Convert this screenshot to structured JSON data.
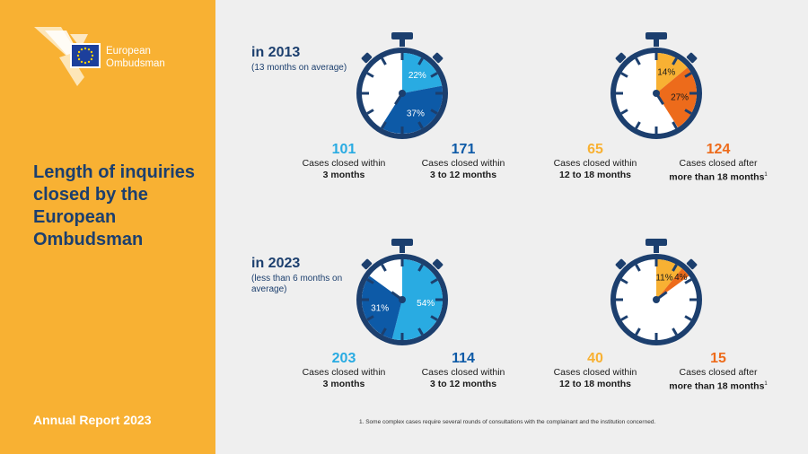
{
  "brand": {
    "name_line1": "European",
    "name_line2": "Ombudsman"
  },
  "sidebar": {
    "title": "Length of inquiries closed by the European Ombudsman",
    "footer": "Annual Report 2023"
  },
  "colors": {
    "dark_navy": "#1c3f6e",
    "light_blue": "#29abe2",
    "mid_blue": "#0d5aa7",
    "orange_light": "#f8b133",
    "orange_dark": "#ed6b1b",
    "sidebar": "#f8b133"
  },
  "periods": [
    {
      "title": "in 2013",
      "subtitle": "(13 months on average)"
    },
    {
      "title": "in 2023",
      "subtitle": "(less than 6 months on average)"
    }
  ],
  "stats_2013": [
    {
      "value": "101",
      "line1": "Cases closed within",
      "line2": "3 months"
    },
    {
      "value": "171",
      "line1": "Cases closed within",
      "line2": "3 to 12 months"
    },
    {
      "value": "65",
      "line1": "Cases closed within",
      "line2": "12 to 18 months"
    },
    {
      "value": "124",
      "line1": "Cases closed after",
      "line2": "more than 18 months",
      "sup": "1"
    }
  ],
  "stats_2023": [
    {
      "value": "203",
      "line1": "Cases closed within",
      "line2": "3 months"
    },
    {
      "value": "114",
      "line1": "Cases closed within",
      "line2": "3 to 12 months"
    },
    {
      "value": "40",
      "line1": "Cases closed within",
      "line2": "12 to 18 months"
    },
    {
      "value": "15",
      "line1": "Cases closed after",
      "line2": "more than 18 months",
      "sup": "1"
    }
  ],
  "footnote": "1. Some complex cases require several rounds of consultations with the complainant and the institution concerned.",
  "chart_data": [
    {
      "type": "pie",
      "year": "2013",
      "slices": [
        {
          "label": "22%",
          "value": 22,
          "color": "#29abe2"
        },
        {
          "label": "37%",
          "value": 37,
          "color": "#0d5aa7"
        }
      ]
    },
    {
      "type": "pie",
      "year": "2013",
      "slices": [
        {
          "label": "14%",
          "value": 14,
          "color": "#f8b133"
        },
        {
          "label": "27%",
          "value": 27,
          "color": "#ed6b1b"
        }
      ]
    },
    {
      "type": "pie",
      "year": "2023",
      "slices": [
        {
          "label": "54%",
          "value": 54,
          "color": "#29abe2"
        },
        {
          "label": "31%",
          "value": 31,
          "color": "#0d5aa7"
        }
      ]
    },
    {
      "type": "pie",
      "year": "2023",
      "slices": [
        {
          "label": "11%",
          "value": 11,
          "color": "#f8b133"
        },
        {
          "label": "4%",
          "value": 4,
          "color": "#ed6b1b"
        }
      ]
    }
  ]
}
